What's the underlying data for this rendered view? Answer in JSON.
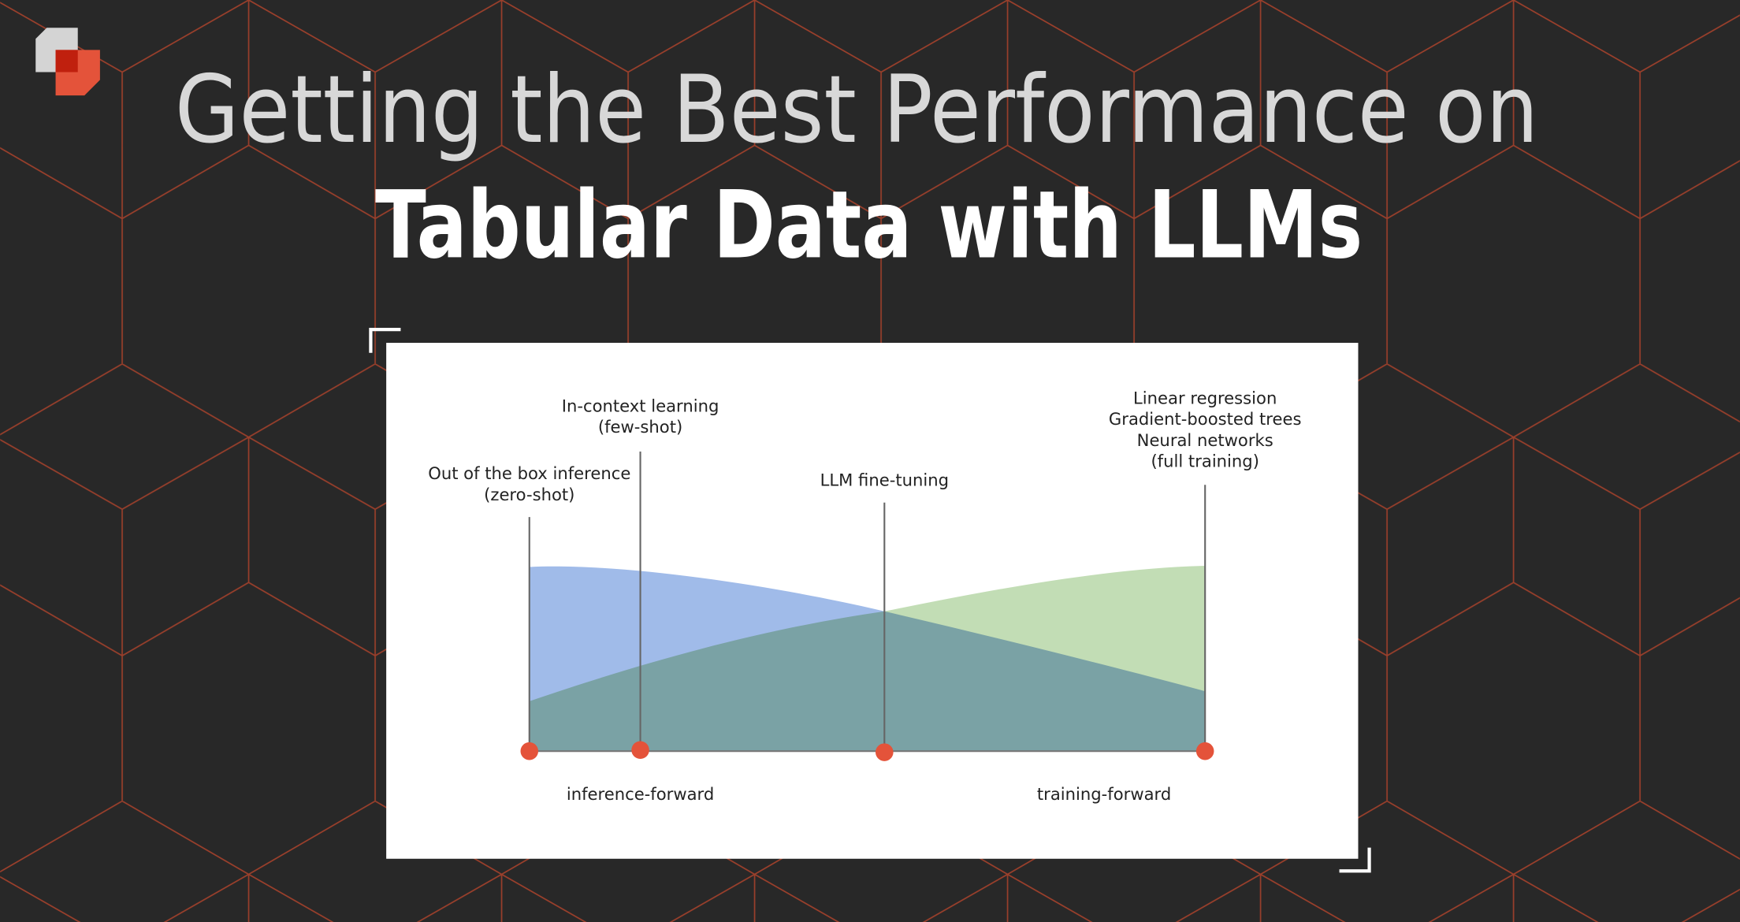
{
  "header": {
    "title_line1": "Getting the Best Performance on",
    "title_line2": "Tabular Data with LLMs"
  },
  "diagram": {
    "markers": [
      {
        "label": [
          "Out of the box inference",
          "(zero-shot)"
        ]
      },
      {
        "label": [
          "In-context learning",
          "(few-shot)"
        ]
      },
      {
        "label": [
          "LLM fine-tuning"
        ]
      },
      {
        "label": [
          "Linear regression",
          "Gradient-boosted trees",
          "Neural networks",
          "(full training)"
        ]
      }
    ],
    "axis_left": "inference-forward",
    "axis_right": "training-forward"
  }
}
